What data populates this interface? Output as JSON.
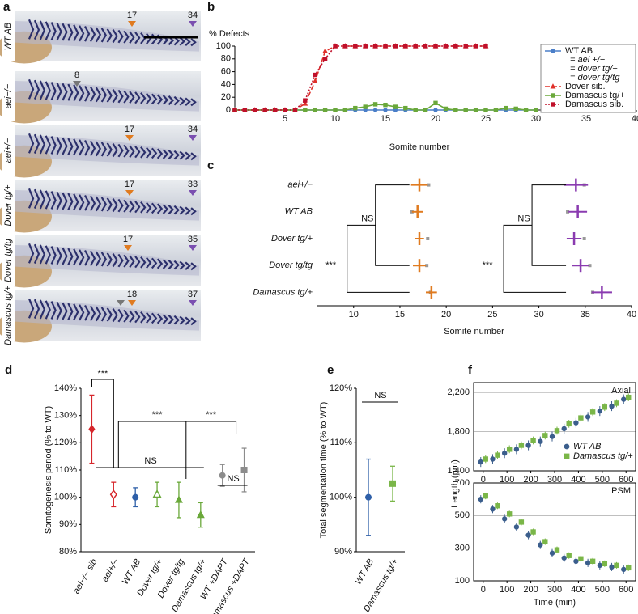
{
  "panel_a": {
    "label": "a",
    "embryos": [
      {
        "genotype": "WT AB",
        "arrows": [
          {
            "value": 17,
            "color": "#e07b20"
          },
          {
            "value": 34,
            "color": "#7a4fb0"
          }
        ]
      },
      {
        "genotype": "aei−/−",
        "arrows": [
          {
            "value": 8,
            "color": "#777777"
          }
        ]
      },
      {
        "genotype": "aei+/−",
        "arrows": [
          {
            "value": 17,
            "color": "#e07b20"
          },
          {
            "value": 34,
            "color": "#7a4fb0"
          }
        ]
      },
      {
        "genotype": "Dover tg/+",
        "arrows": [
          {
            "value": 17,
            "color": "#e07b20"
          },
          {
            "value": 33,
            "color": "#7a4fb0"
          }
        ]
      },
      {
        "genotype": "Dover tg/tg",
        "arrows": [
          {
            "value": 17,
            "color": "#e07b20"
          },
          {
            "value": 35,
            "color": "#7a4fb0"
          }
        ]
      },
      {
        "genotype": "Damascus tg/+",
        "arrows": [
          {
            "value": 18,
            "color": "#e07b20"
          },
          {
            "value": 37,
            "color": "#7a4fb0"
          }
        ]
      }
    ]
  },
  "chart_data": [
    {
      "type": "line",
      "panel": "b",
      "y_label": "% Defects",
      "x_label": "Somite number",
      "xlim": [
        0,
        40
      ],
      "xticks": [
        5,
        10,
        15,
        20,
        25,
        30,
        35,
        40
      ],
      "ylim": [
        0,
        100
      ],
      "yticks": [
        0,
        20,
        40,
        60,
        80,
        100
      ],
      "legend": "upper right",
      "legend_note": [
        "= aei +/−",
        "= dover tg/+",
        "= dover tg/tg"
      ],
      "x": [
        0,
        1,
        2,
        3,
        4,
        5,
        6,
        7,
        8,
        9,
        10,
        11,
        12,
        13,
        14,
        15,
        16,
        17,
        18,
        19,
        20,
        21,
        22,
        23,
        24,
        25,
        26,
        27,
        28,
        29,
        30
      ],
      "series": [
        {
          "name": "WT AB",
          "color": "#4a7ec8",
          "marker": "circle",
          "dash": "none",
          "values": [
            0,
            0,
            0,
            0,
            0,
            0,
            0,
            0,
            0,
            0,
            0,
            0,
            0,
            0,
            0,
            0,
            0,
            0,
            0,
            0,
            0,
            0,
            0,
            0,
            0,
            0,
            0,
            0,
            0,
            0,
            0
          ]
        },
        {
          "name": "Dover sib.",
          "color": "#e0302a",
          "marker": "triangle",
          "dash": "6 3",
          "values": [
            0,
            0,
            0,
            0,
            0,
            0,
            0,
            10,
            45,
            92,
            100,
            100,
            100,
            100,
            100,
            100,
            100,
            100,
            100,
            100,
            100,
            100,
            100,
            100,
            100,
            100,
            null,
            null,
            null,
            null,
            null
          ]
        },
        {
          "name": "Damascus tg/+",
          "color": "#6aa83a",
          "marker": "square",
          "dash": "none",
          "values": [
            0,
            0,
            0,
            0,
            0,
            0,
            0,
            0,
            0,
            0,
            0,
            0,
            3,
            5,
            9,
            8,
            5,
            3,
            0,
            0,
            11,
            2,
            0,
            0,
            0,
            0,
            0,
            3,
            2,
            0,
            0
          ]
        },
        {
          "name": "Damascus sib.",
          "color": "#c0102a",
          "marker": "square",
          "dash": "2 2",
          "values": [
            0,
            0,
            0,
            0,
            0,
            0,
            0,
            15,
            55,
            80,
            100,
            100,
            100,
            100,
            100,
            100,
            100,
            100,
            100,
            100,
            100,
            100,
            100,
            100,
            100,
            100,
            null,
            null,
            null,
            null,
            null
          ]
        }
      ]
    },
    {
      "type": "dot",
      "panel": "c",
      "x_label": "Somite number",
      "xlim": [
        6,
        40
      ],
      "xticks": [
        10,
        15,
        20,
        25,
        30,
        35,
        40
      ],
      "categories": [
        "aei+/−",
        "WT AB",
        "Dover tg/+",
        "Dover tg/tg",
        "Damascus tg/+"
      ],
      "series": [
        {
          "color": "#e07b20",
          "values": [
            17.1,
            16.9,
            17.1,
            17.1,
            18.4
          ],
          "errors": [
            0.9,
            0.6,
            0.5,
            0.7,
            0.6
          ],
          "gray": [
            18.1,
            16.3,
            18.0,
            17.9,
            18.3
          ],
          "annotations": [
            "NS",
            "***"
          ]
        },
        {
          "color": "#8a3bb0",
          "values": [
            34.0,
            34.2,
            33.8,
            34.5,
            36.8
          ],
          "errors": [
            1.3,
            1.0,
            0.8,
            0.9,
            1.1
          ],
          "gray": [
            34.9,
            33.1,
            34.9,
            35.5,
            35.8
          ],
          "annotations": [
            "NS",
            "***"
          ]
        }
      ]
    },
    {
      "type": "errorbar",
      "panel": "d",
      "y_label": "Somitogenesis period (% to WT)",
      "categories": [
        "aei−/− sib",
        "aei+/−",
        "WT AB",
        "Dover tg/+",
        "Dover tg/tg",
        "Damascus tg/+",
        "WT +DAPT",
        "Damascus +DAPT"
      ],
      "values": [
        125,
        101,
        100,
        101,
        99,
        93.5,
        108,
        110
      ],
      "errors": [
        12.5,
        4.5,
        3.5,
        4.5,
        6.5,
        4.5,
        4,
        8
      ],
      "colors": [
        "#d6262b",
        "#d6262b",
        "#2e5fa8",
        "#6aa83a",
        "#6aa83a",
        "#6aa83a",
        "#8c8c8c",
        "#8c8c8c"
      ],
      "markers": [
        "diamond",
        "diamond-open",
        "circle",
        "triangle-open",
        "triangle",
        "triangle",
        "circle",
        "square"
      ],
      "ylim": [
        80,
        140
      ],
      "yticks": [
        {
          "value": 80,
          "label": "80%"
        },
        {
          "value": 90,
          "label": "90%"
        },
        {
          "value": 100,
          "label": "100%"
        },
        {
          "value": 110,
          "label": "110%"
        },
        {
          "value": 120,
          "label": "120%"
        },
        {
          "value": 130,
          "label": "130%"
        },
        {
          "value": 140,
          "label": "140%"
        }
      ],
      "annotations": [
        "***",
        "***",
        "***",
        "NS",
        "NS"
      ]
    },
    {
      "type": "errorbar",
      "panel": "e",
      "y_label": "Total segmentation time (% to WT)",
      "categories": [
        "WT AB",
        "Damascus tg/+"
      ],
      "values": [
        100,
        102.5
      ],
      "errors": [
        7,
        3.2
      ],
      "colors": [
        "#2e5fa8",
        "#7ab648"
      ],
      "markers": [
        "circle",
        "square"
      ],
      "ylim": [
        90,
        120
      ],
      "yticks": [
        {
          "value": 90,
          "label": "90%"
        },
        {
          "value": 100,
          "label": "100%"
        },
        {
          "value": 110,
          "label": "110%"
        },
        {
          "value": 120,
          "label": "120%"
        }
      ],
      "annotations": [
        "NS"
      ]
    },
    {
      "type": "scatter",
      "panel": "f",
      "label": "Axial",
      "grid": true,
      "legend": "lower right",
      "x": [
        0,
        50,
        100,
        150,
        200,
        250,
        300,
        350,
        400,
        450,
        500,
        550,
        600
      ],
      "xlim": [
        -40,
        640
      ],
      "xticks": [
        0,
        100,
        200,
        300,
        400,
        500,
        600
      ],
      "ylim": [
        1400,
        2300
      ],
      "yticks": [
        {
          "value": 1400,
          "label": "1,400"
        },
        {
          "value": 1800,
          "label": "1,800"
        },
        {
          "value": 2200,
          "label": "2,200"
        }
      ],
      "series": [
        {
          "name": "WT AB",
          "color": "#3b5e8c",
          "marker": "circle",
          "values": [
            1490,
            1520,
            1580,
            1620,
            1660,
            1700,
            1750,
            1830,
            1890,
            1950,
            2010,
            2060,
            2130
          ],
          "errors": [
            50,
            50,
            50,
            50,
            50,
            50,
            50,
            50,
            50,
            50,
            50,
            50,
            50
          ]
        },
        {
          "name": "Damascus tg/+",
          "color": "#7ab648",
          "marker": "square",
          "values": [
            1520,
            1560,
            1620,
            1660,
            1710,
            1760,
            1810,
            1880,
            1940,
            2000,
            2050,
            2090,
            2150
          ],
          "errors": [
            40,
            40,
            40,
            40,
            40,
            40,
            40,
            40,
            40,
            40,
            40,
            40,
            40
          ]
        }
      ]
    },
    {
      "type": "scatter",
      "label": "PSM",
      "grid": true,
      "y_label": "Length (µm)",
      "x_label": "Time (min)",
      "x": [
        0,
        50,
        100,
        150,
        200,
        250,
        300,
        350,
        400,
        450,
        500,
        550,
        600
      ],
      "xlim": [
        -40,
        640
      ],
      "xticks": [
        0,
        100,
        200,
        300,
        400,
        500,
        600
      ],
      "ylim": [
        100,
        700
      ],
      "yticks": [
        100,
        300,
        500,
        700
      ],
      "series": [
        {
          "color": "#3b5e8c",
          "marker": "circle",
          "values": [
            600,
            540,
            480,
            430,
            380,
            320,
            270,
            240,
            220,
            210,
            195,
            185,
            170
          ],
          "errors": [
            25,
            25,
            25,
            25,
            25,
            25,
            25,
            25,
            25,
            25,
            25,
            25,
            25
          ]
        },
        {
          "color": "#7ab648",
          "marker": "square",
          "values": [
            620,
            560,
            510,
            460,
            400,
            340,
            290,
            255,
            235,
            220,
            205,
            195,
            180
          ],
          "errors": [
            20,
            20,
            20,
            20,
            20,
            20,
            20,
            20,
            20,
            20,
            20,
            20,
            20
          ]
        }
      ]
    }
  ]
}
